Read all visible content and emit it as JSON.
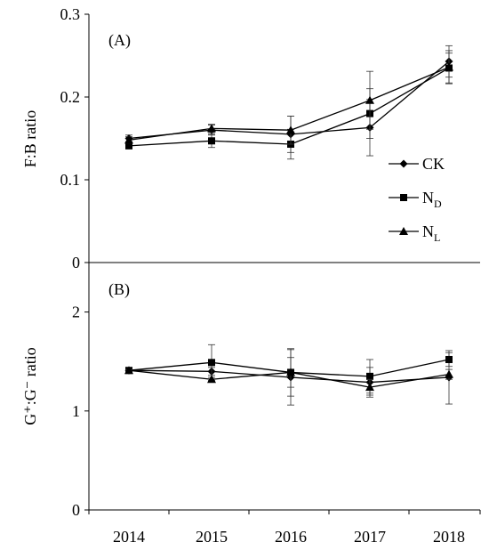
{
  "chart_data": [
    {
      "type": "line",
      "panel_label": "(A)",
      "ylabel": "F:B ratio",
      "ylim": [
        0,
        0.3
      ],
      "yticks": [
        "0",
        "0.1",
        "0.2",
        "0.3"
      ],
      "categories": [
        "2014",
        "2015",
        "2016",
        "2017",
        "2018"
      ],
      "legend_position": "right",
      "series": [
        {
          "name": "CK",
          "marker": "diamond",
          "values": [
            0.15,
            0.16,
            0.155,
            0.163,
            0.243
          ],
          "errors": [
            0.004,
            0.006,
            0.022,
            0.034,
            0.019
          ]
        },
        {
          "name": "N_D",
          "marker": "square",
          "values": [
            0.141,
            0.147,
            0.143,
            0.18,
            0.235
          ],
          "errors": [
            0.003,
            0.008,
            0.018,
            0.03,
            0.018
          ]
        },
        {
          "name": "N_L",
          "marker": "triangle",
          "values": [
            0.148,
            0.162,
            0.16,
            0.196,
            0.236
          ],
          "errors": [
            0.004,
            0.005,
            0.017,
            0.035,
            0.02
          ]
        }
      ]
    },
    {
      "type": "line",
      "panel_label": "(B)",
      "ylabel": "G⁺:G⁻ ratio",
      "ylim": [
        0,
        2.5
      ],
      "yticks": [
        "0",
        "1",
        "2"
      ],
      "categories": [
        "2014",
        "2015",
        "2016",
        "2017",
        "2018"
      ],
      "series": [
        {
          "name": "CK",
          "marker": "diamond",
          "values": [
            1.41,
            1.4,
            1.34,
            1.29,
            1.34
          ],
          "errors": [
            0.01,
            0.04,
            0.28,
            0.15,
            0.27
          ]
        },
        {
          "name": "N_D",
          "marker": "square",
          "values": [
            1.41,
            1.49,
            1.39,
            1.35,
            1.52
          ],
          "errors": [
            0.01,
            0.18,
            0.24,
            0.17,
            0.07
          ]
        },
        {
          "name": "N_L",
          "marker": "triangle",
          "values": [
            1.41,
            1.32,
            1.39,
            1.24,
            1.37
          ],
          "errors": [
            0.01,
            0.02,
            0.15,
            0.08,
            0.05
          ]
        }
      ]
    }
  ]
}
